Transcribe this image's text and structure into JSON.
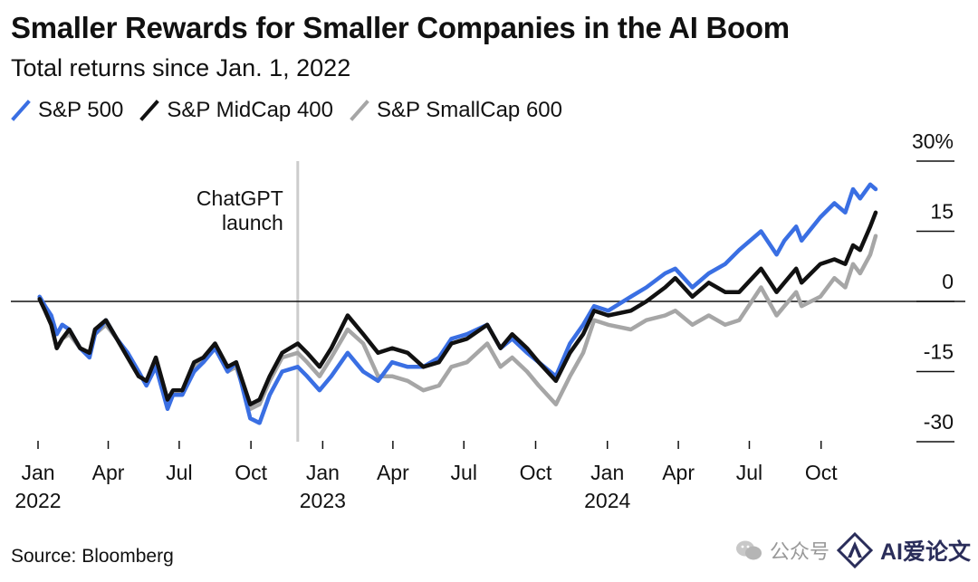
{
  "title": "Smaller Rewards for Smaller Companies in the AI Boom",
  "subtitle": "Total returns since Jan. 1, 2022",
  "source": "Source: Bloomberg",
  "watermark": {
    "channel": "公众号",
    "brand": "AI爱论文"
  },
  "colors": {
    "sp500": "#3a6fe3",
    "midcap": "#111111",
    "smallcap": "#a6a6a6",
    "zero_line": "#111111",
    "annotation_line": "#cccccc"
  },
  "chart_data": {
    "type": "line",
    "title": "Smaller Rewards for Smaller Companies in the AI Boom",
    "subtitle": "Total returns since Jan. 1, 2022",
    "y_unit": "%",
    "ylim": [
      -30,
      30
    ],
    "y_ticks": [
      30,
      15,
      0,
      -15,
      -30
    ],
    "y_tick_labels": [
      "30%",
      "15",
      "0",
      "-15",
      "-30"
    ],
    "x_range": [
      "2022-01-01",
      "2024-12-10"
    ],
    "x_ticks": [
      {
        "date": "2022-01-01",
        "label": "Jan",
        "year": "2022"
      },
      {
        "date": "2022-04-01",
        "label": "Apr",
        "year": ""
      },
      {
        "date": "2022-07-01",
        "label": "Jul",
        "year": ""
      },
      {
        "date": "2022-10-01",
        "label": "Oct",
        "year": ""
      },
      {
        "date": "2023-01-01",
        "label": "Jan",
        "year": "2023"
      },
      {
        "date": "2023-04-01",
        "label": "Apr",
        "year": ""
      },
      {
        "date": "2023-07-01",
        "label": "Jul",
        "year": ""
      },
      {
        "date": "2023-10-01",
        "label": "Oct",
        "year": ""
      },
      {
        "date": "2024-01-01",
        "label": "Jan",
        "year": "2024"
      },
      {
        "date": "2024-04-01",
        "label": "Apr",
        "year": ""
      },
      {
        "date": "2024-07-01",
        "label": "Jul",
        "year": ""
      },
      {
        "date": "2024-10-01",
        "label": "Oct",
        "year": ""
      }
    ],
    "annotation": {
      "date": "2022-11-30",
      "text_line1": "ChatGPT",
      "text_line2": "launch"
    },
    "grid": false,
    "legend_position": "top-left",
    "series": [
      {
        "name": "S&P 500",
        "color": "#3a6fe3",
        "points": [
          [
            "2022-01-03",
            1
          ],
          [
            "2022-01-10",
            -1
          ],
          [
            "2022-01-18",
            -3
          ],
          [
            "2022-01-25",
            -7
          ],
          [
            "2022-02-01",
            -5
          ],
          [
            "2022-02-10",
            -6
          ],
          [
            "2022-02-24",
            -10
          ],
          [
            "2022-03-08",
            -12
          ],
          [
            "2022-03-15",
            -7
          ],
          [
            "2022-03-29",
            -4
          ],
          [
            "2022-04-12",
            -8
          ],
          [
            "2022-04-26",
            -11
          ],
          [
            "2022-05-10",
            -15
          ],
          [
            "2022-05-20",
            -18
          ],
          [
            "2022-06-01",
            -14
          ],
          [
            "2022-06-16",
            -23
          ],
          [
            "2022-06-23",
            -20
          ],
          [
            "2022-07-05",
            -20
          ],
          [
            "2022-07-20",
            -15
          ],
          [
            "2022-08-01",
            -13
          ],
          [
            "2022-08-16",
            -10
          ],
          [
            "2022-09-01",
            -15
          ],
          [
            "2022-09-12",
            -13
          ],
          [
            "2022-09-30",
            -25
          ],
          [
            "2022-10-12",
            -26
          ],
          [
            "2022-10-25",
            -20
          ],
          [
            "2022-11-10",
            -15
          ],
          [
            "2022-11-30",
            -14
          ],
          [
            "2022-12-12",
            -16
          ],
          [
            "2022-12-28",
            -19
          ],
          [
            "2023-01-12",
            -16
          ],
          [
            "2023-02-02",
            -11
          ],
          [
            "2023-02-22",
            -15
          ],
          [
            "2023-03-13",
            -17
          ],
          [
            "2023-03-31",
            -13
          ],
          [
            "2023-04-20",
            -14
          ],
          [
            "2023-05-10",
            -14
          ],
          [
            "2023-05-30",
            -12
          ],
          [
            "2023-06-15",
            -8
          ],
          [
            "2023-07-05",
            -7
          ],
          [
            "2023-07-31",
            -5
          ],
          [
            "2023-08-17",
            -10
          ],
          [
            "2023-09-01",
            -8
          ],
          [
            "2023-09-20",
            -11
          ],
          [
            "2023-10-05",
            -13
          ],
          [
            "2023-10-27",
            -16
          ],
          [
            "2023-11-14",
            -9
          ],
          [
            "2023-12-01",
            -5
          ],
          [
            "2023-12-15",
            -1
          ],
          [
            "2024-01-02",
            -2
          ],
          [
            "2024-01-31",
            1
          ],
          [
            "2024-02-20",
            3
          ],
          [
            "2024-03-15",
            6
          ],
          [
            "2024-03-28",
            7
          ],
          [
            "2024-04-19",
            3
          ],
          [
            "2024-05-10",
            6
          ],
          [
            "2024-05-31",
            8
          ],
          [
            "2024-06-18",
            11
          ],
          [
            "2024-07-16",
            15
          ],
          [
            "2024-08-05",
            10
          ],
          [
            "2024-08-15",
            13
          ],
          [
            "2024-08-30",
            16
          ],
          [
            "2024-09-06",
            13
          ],
          [
            "2024-09-30",
            18
          ],
          [
            "2024-10-18",
            21
          ],
          [
            "2024-11-01",
            19
          ],
          [
            "2024-11-11",
            24
          ],
          [
            "2024-11-20",
            22
          ],
          [
            "2024-12-03",
            25
          ],
          [
            "2024-12-10",
            24
          ]
        ]
      },
      {
        "name": "S&P MidCap 400",
        "color": "#111111",
        "points": [
          [
            "2022-01-03",
            0.5
          ],
          [
            "2022-01-10",
            -2
          ],
          [
            "2022-01-18",
            -5
          ],
          [
            "2022-01-25",
            -10
          ],
          [
            "2022-02-01",
            -8
          ],
          [
            "2022-02-10",
            -6
          ],
          [
            "2022-02-24",
            -10
          ],
          [
            "2022-03-08",
            -11
          ],
          [
            "2022-03-15",
            -6
          ],
          [
            "2022-03-29",
            -4
          ],
          [
            "2022-04-12",
            -8
          ],
          [
            "2022-04-26",
            -12
          ],
          [
            "2022-05-10",
            -16
          ],
          [
            "2022-05-20",
            -17
          ],
          [
            "2022-06-01",
            -12
          ],
          [
            "2022-06-16",
            -21
          ],
          [
            "2022-06-23",
            -19
          ],
          [
            "2022-07-05",
            -19
          ],
          [
            "2022-07-20",
            -13
          ],
          [
            "2022-08-01",
            -12
          ],
          [
            "2022-08-16",
            -9
          ],
          [
            "2022-09-01",
            -14
          ],
          [
            "2022-09-12",
            -13
          ],
          [
            "2022-09-30",
            -22
          ],
          [
            "2022-10-12",
            -21
          ],
          [
            "2022-10-25",
            -16
          ],
          [
            "2022-11-10",
            -11
          ],
          [
            "2022-11-30",
            -9
          ],
          [
            "2022-12-12",
            -11
          ],
          [
            "2022-12-28",
            -14
          ],
          [
            "2023-01-12",
            -10
          ],
          [
            "2023-02-02",
            -3
          ],
          [
            "2023-02-22",
            -7
          ],
          [
            "2023-03-13",
            -11
          ],
          [
            "2023-03-31",
            -10
          ],
          [
            "2023-04-20",
            -11
          ],
          [
            "2023-05-10",
            -14
          ],
          [
            "2023-05-30",
            -13
          ],
          [
            "2023-06-15",
            -9
          ],
          [
            "2023-07-05",
            -8
          ],
          [
            "2023-07-31",
            -5
          ],
          [
            "2023-08-17",
            -10
          ],
          [
            "2023-09-01",
            -7
          ],
          [
            "2023-09-20",
            -10
          ],
          [
            "2023-10-05",
            -13
          ],
          [
            "2023-10-27",
            -17
          ],
          [
            "2023-11-14",
            -11
          ],
          [
            "2023-12-01",
            -7
          ],
          [
            "2023-12-15",
            -2
          ],
          [
            "2024-01-02",
            -3
          ],
          [
            "2024-01-31",
            -2
          ],
          [
            "2024-02-20",
            0
          ],
          [
            "2024-03-15",
            3
          ],
          [
            "2024-03-28",
            5
          ],
          [
            "2024-04-19",
            1
          ],
          [
            "2024-05-10",
            4
          ],
          [
            "2024-05-31",
            2
          ],
          [
            "2024-06-18",
            2
          ],
          [
            "2024-07-16",
            7
          ],
          [
            "2024-08-05",
            2
          ],
          [
            "2024-08-15",
            4
          ],
          [
            "2024-08-30",
            7
          ],
          [
            "2024-09-06",
            4
          ],
          [
            "2024-09-30",
            8
          ],
          [
            "2024-10-18",
            9
          ],
          [
            "2024-11-01",
            8
          ],
          [
            "2024-11-11",
            12
          ],
          [
            "2024-11-20",
            11
          ],
          [
            "2024-12-03",
            16
          ],
          [
            "2024-12-10",
            19
          ]
        ]
      },
      {
        "name": "S&P SmallCap 600",
        "color": "#a6a6a6",
        "points": [
          [
            "2022-01-03",
            0.5
          ],
          [
            "2022-01-10",
            -2
          ],
          [
            "2022-01-18",
            -5
          ],
          [
            "2022-01-25",
            -10
          ],
          [
            "2022-02-01",
            -8
          ],
          [
            "2022-02-10",
            -7
          ],
          [
            "2022-02-24",
            -10
          ],
          [
            "2022-03-08",
            -11
          ],
          [
            "2022-03-15",
            -7
          ],
          [
            "2022-03-29",
            -5
          ],
          [
            "2022-04-12",
            -8
          ],
          [
            "2022-04-26",
            -12
          ],
          [
            "2022-05-10",
            -16
          ],
          [
            "2022-05-20",
            -17
          ],
          [
            "2022-06-01",
            -13
          ],
          [
            "2022-06-16",
            -22
          ],
          [
            "2022-06-23",
            -20
          ],
          [
            "2022-07-05",
            -20
          ],
          [
            "2022-07-20",
            -14
          ],
          [
            "2022-08-01",
            -13
          ],
          [
            "2022-08-16",
            -10
          ],
          [
            "2022-09-01",
            -15
          ],
          [
            "2022-09-12",
            -14
          ],
          [
            "2022-09-30",
            -23
          ],
          [
            "2022-10-12",
            -22
          ],
          [
            "2022-10-25",
            -17
          ],
          [
            "2022-11-10",
            -12
          ],
          [
            "2022-11-30",
            -11
          ],
          [
            "2022-12-12",
            -13
          ],
          [
            "2022-12-28",
            -16
          ],
          [
            "2023-01-12",
            -12
          ],
          [
            "2023-02-02",
            -6
          ],
          [
            "2023-02-22",
            -9
          ],
          [
            "2023-03-13",
            -16
          ],
          [
            "2023-03-31",
            -16
          ],
          [
            "2023-04-20",
            -17
          ],
          [
            "2023-05-10",
            -19
          ],
          [
            "2023-05-30",
            -18
          ],
          [
            "2023-06-15",
            -14
          ],
          [
            "2023-07-05",
            -13
          ],
          [
            "2023-07-31",
            -9
          ],
          [
            "2023-08-17",
            -14
          ],
          [
            "2023-09-01",
            -12
          ],
          [
            "2023-09-20",
            -15
          ],
          [
            "2023-10-05",
            -18
          ],
          [
            "2023-10-27",
            -22
          ],
          [
            "2023-11-14",
            -16
          ],
          [
            "2023-12-01",
            -11
          ],
          [
            "2023-12-15",
            -4
          ],
          [
            "2024-01-02",
            -5
          ],
          [
            "2024-01-31",
            -6
          ],
          [
            "2024-02-20",
            -4
          ],
          [
            "2024-03-15",
            -3
          ],
          [
            "2024-03-28",
            -2
          ],
          [
            "2024-04-19",
            -5
          ],
          [
            "2024-05-10",
            -3
          ],
          [
            "2024-05-31",
            -5
          ],
          [
            "2024-06-18",
            -4
          ],
          [
            "2024-07-16",
            3
          ],
          [
            "2024-08-05",
            -3
          ],
          [
            "2024-08-15",
            -1
          ],
          [
            "2024-08-30",
            2
          ],
          [
            "2024-09-06",
            -1
          ],
          [
            "2024-09-30",
            1
          ],
          [
            "2024-10-18",
            5
          ],
          [
            "2024-11-01",
            3
          ],
          [
            "2024-11-11",
            8
          ],
          [
            "2024-11-20",
            6
          ],
          [
            "2024-12-03",
            10
          ],
          [
            "2024-12-10",
            14
          ]
        ]
      }
    ]
  }
}
